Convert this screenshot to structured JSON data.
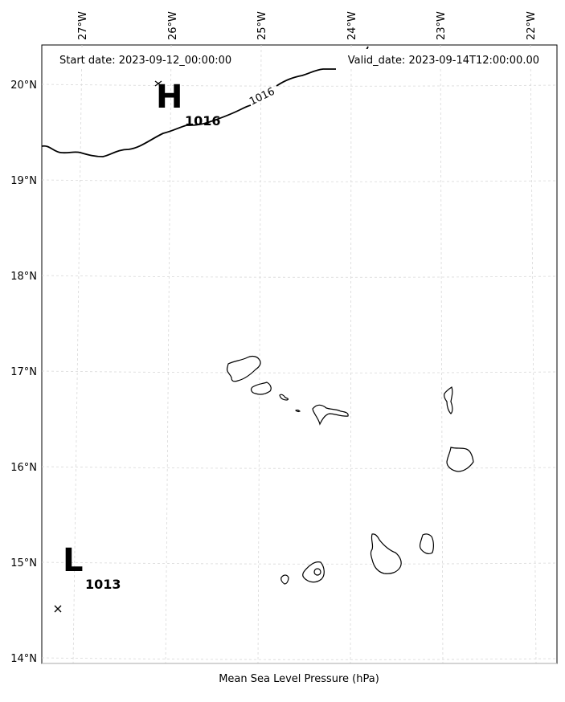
{
  "map": {
    "start_label": "Start date: 2023-09-12_00:00:00",
    "valid_label": "Valid_date: 2023-09-14T12:00:00.00",
    "xlabel": "Mean Sea Level Pressure (hPa)",
    "lon_ticks": [
      "27°W",
      "26°W",
      "25°W",
      "24°W",
      "23°W",
      "22°W"
    ],
    "lat_ticks": [
      "20°N",
      "19°N",
      "18°N",
      "17°N",
      "16°N",
      "15°N",
      "14°N"
    ],
    "centers": [
      {
        "type": "H",
        "value": "1016"
      },
      {
        "type": "L",
        "value": "1013"
      }
    ],
    "contour_label": "1016",
    "gridlines": true,
    "coastlines": true
  }
}
